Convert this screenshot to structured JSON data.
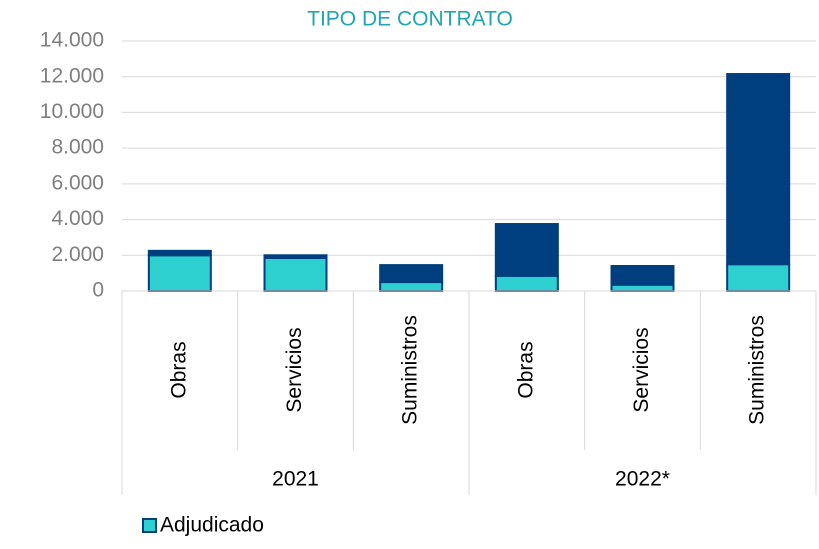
{
  "chart_data": {
    "type": "stacked_bar",
    "title": "TIPO DE CONTRATO",
    "categories": [
      "Obras",
      "Servicios",
      "Suministros",
      "Obras",
      "Servicios",
      "Suministros"
    ],
    "groups": [
      "2021",
      "2022*"
    ],
    "series": [
      {
        "name": "Adjudicado",
        "color": "#2ecfcf",
        "values": [
          2000,
          1850,
          500,
          850,
          350,
          1500
        ]
      },
      {
        "name": null,
        "color": "#003f7f",
        "values": [
          250,
          150,
          950,
          2900,
          1050,
          10650
        ]
      }
    ],
    "ylim": [
      0,
      14000
    ],
    "yticks": [
      0,
      {
        "value": 2000,
        "label": "2.000"
      },
      {
        "value": 4000,
        "label": "4.000"
      },
      {
        "value": 6000,
        "label": "6.000"
      },
      {
        "value": 8000,
        "label": "8.000"
      },
      {
        "value": 10000,
        "label": "10.000"
      },
      {
        "value": 12000,
        "label": "12.000"
      },
      {
        "value": 14000,
        "label": "14.000"
      }
    ],
    "grid": true,
    "legend": "bottom-left"
  }
}
